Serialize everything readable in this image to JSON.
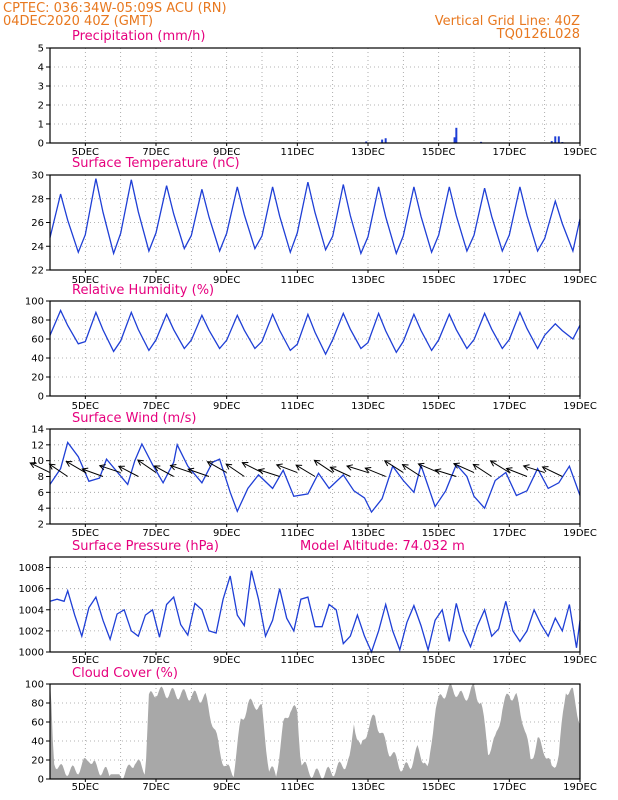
{
  "header": {
    "line1": "CPTEC:   036:34W-05:09S   ACU (RN)",
    "line2": "04DEC2020 40Z (GMT)",
    "right1": "Vertical Grid Line: 40Z",
    "right2": "TQ0126L028",
    "model_altitude": "Model Altitude: 74.032 m"
  },
  "colors": {
    "header": "#e8781f",
    "title": "#e6007e",
    "series": "#1f3fd6",
    "cloud": "#a8a8a8",
    "arrow": "#000000"
  },
  "x_labels": [
    "5DEC",
    "7DEC",
    "9DEC",
    "11DEC",
    "13DEC",
    "15DEC",
    "17DEC",
    "19DEC"
  ],
  "chart_data": [
    {
      "id": "precipitation",
      "type": "bar",
      "title": "Precipitation (mm/h)",
      "ylim": [
        0,
        5
      ],
      "yticks": [
        0,
        1,
        2,
        3,
        4,
        5
      ],
      "x_day_range": [
        4.0,
        19.0
      ],
      "points": [
        [
          12.95,
          0.08
        ],
        [
          13.4,
          0.18
        ],
        [
          13.5,
          0.25
        ],
        [
          15.5,
          0.8
        ],
        [
          15.45,
          0.3
        ],
        [
          16.2,
          0.06
        ],
        [
          18.2,
          0.1
        ],
        [
          18.3,
          0.35
        ],
        [
          18.4,
          0.35
        ],
        [
          18.5,
          0.05
        ]
      ]
    },
    {
      "id": "temperature",
      "type": "line",
      "title": "Surface Temperature (nC)",
      "ylim": [
        22,
        30
      ],
      "yticks": [
        22,
        24,
        26,
        28,
        30
      ],
      "x_day_range": [
        4.0,
        19.0
      ],
      "peaks": [
        28.4,
        29.7,
        29.6,
        29.1,
        28.8,
        29.0,
        29.0,
        29.4,
        29.2,
        29.0,
        29.0,
        29.0,
        28.9,
        29.0,
        27.8
      ],
      "troughs": [
        23.5,
        23.4,
        23.6,
        23.8,
        23.6,
        23.8,
        23.5,
        23.7,
        23.4,
        23.4,
        23.5,
        23.6,
        23.6,
        23.6,
        23.6
      ]
    },
    {
      "id": "humidity",
      "type": "line",
      "title": "Relative Humidity (%)",
      "ylim": [
        0,
        100
      ],
      "yticks": [
        0,
        20,
        40,
        60,
        80,
        100
      ],
      "x_day_range": [
        4.0,
        19.0
      ],
      "peaks": [
        90,
        88,
        88,
        86,
        85,
        85,
        86,
        86,
        87,
        87,
        86,
        86,
        87,
        88,
        76
      ],
      "troughs": [
        55,
        47,
        48,
        50,
        50,
        50,
        48,
        44,
        50,
        46,
        48,
        50,
        50,
        50,
        60
      ]
    },
    {
      "id": "wind",
      "type": "line",
      "title": "Surface Wind (m/s)",
      "ylim": [
        2,
        14
      ],
      "yticks": [
        2,
        4,
        6,
        8,
        10,
        12,
        14
      ],
      "x_day_range": [
        4.0,
        19.0
      ],
      "speed": [
        [
          4.0,
          7.0
        ],
        [
          4.3,
          9.0
        ],
        [
          4.5,
          12.3
        ],
        [
          4.8,
          10.5
        ],
        [
          5.1,
          7.4
        ],
        [
          5.4,
          7.8
        ],
        [
          5.6,
          10.2
        ],
        [
          5.9,
          8.6
        ],
        [
          6.2,
          7.0
        ],
        [
          6.4,
          10.0
        ],
        [
          6.6,
          12.1
        ],
        [
          6.9,
          9.5
        ],
        [
          7.2,
          7.2
        ],
        [
          7.5,
          9.8
        ],
        [
          7.6,
          12.0
        ],
        [
          7.9,
          9.3
        ],
        [
          8.3,
          7.2
        ],
        [
          8.6,
          9.8
        ],
        [
          8.8,
          10.2
        ],
        [
          9.1,
          6.0
        ],
        [
          9.3,
          3.6
        ],
        [
          9.6,
          6.5
        ],
        [
          9.9,
          8.2
        ],
        [
          10.3,
          6.5
        ],
        [
          10.6,
          8.8
        ],
        [
          10.9,
          5.5
        ],
        [
          11.3,
          5.8
        ],
        [
          11.6,
          8.4
        ],
        [
          11.9,
          6.5
        ],
        [
          12.3,
          8.2
        ],
        [
          12.6,
          6.2
        ],
        [
          12.9,
          5.3
        ],
        [
          13.1,
          3.5
        ],
        [
          13.4,
          5.2
        ],
        [
          13.7,
          9.3
        ],
        [
          14.0,
          7.5
        ],
        [
          14.3,
          6.0
        ],
        [
          14.5,
          9.4
        ],
        [
          14.9,
          4.2
        ],
        [
          15.2,
          6.2
        ],
        [
          15.5,
          9.5
        ],
        [
          15.8,
          8.0
        ],
        [
          16.0,
          5.5
        ],
        [
          16.3,
          4.0
        ],
        [
          16.6,
          7.5
        ],
        [
          16.9,
          8.5
        ],
        [
          17.2,
          5.6
        ],
        [
          17.5,
          6.2
        ],
        [
          17.8,
          9.0
        ],
        [
          18.1,
          6.5
        ],
        [
          18.4,
          7.2
        ],
        [
          18.7,
          9.3
        ],
        [
          19.0,
          5.6
        ]
      ],
      "arrow_days": [
        4.0,
        4.5,
        5.0,
        5.5,
        6.0,
        6.5,
        7.0,
        7.5,
        8.0,
        8.5,
        9.0,
        9.5,
        10.0,
        10.5,
        11.0,
        11.5,
        12.0,
        12.5,
        13.0,
        13.5,
        14.0,
        14.5,
        15.0,
        15.5,
        16.0,
        16.5,
        17.0,
        17.5,
        18.0,
        18.5
      ]
    },
    {
      "id": "pressure",
      "type": "line",
      "title": "Surface Pressure (hPa)",
      "ylim": [
        1000,
        1009
      ],
      "yticks": [
        1000,
        1002,
        1004,
        1006,
        1008
      ],
      "x_day_range": [
        4.0,
        19.0
      ],
      "points": [
        [
          4.0,
          1004.8
        ],
        [
          4.2,
          1005.0
        ],
        [
          4.4,
          1004.8
        ],
        [
          4.5,
          1005.8
        ],
        [
          4.7,
          1003.5
        ],
        [
          4.9,
          1001.5
        ],
        [
          5.1,
          1004.2
        ],
        [
          5.3,
          1005.2
        ],
        [
          5.5,
          1003.0
        ],
        [
          5.7,
          1001.2
        ],
        [
          5.9,
          1003.6
        ],
        [
          6.1,
          1004.0
        ],
        [
          6.3,
          1002.0
        ],
        [
          6.5,
          1001.5
        ],
        [
          6.7,
          1003.5
        ],
        [
          6.9,
          1004.0
        ],
        [
          7.1,
          1001.4
        ],
        [
          7.3,
          1004.5
        ],
        [
          7.5,
          1005.2
        ],
        [
          7.7,
          1002.6
        ],
        [
          7.9,
          1001.6
        ],
        [
          8.1,
          1004.6
        ],
        [
          8.3,
          1004.0
        ],
        [
          8.5,
          1002.0
        ],
        [
          8.7,
          1001.8
        ],
        [
          8.9,
          1005.0
        ],
        [
          9.1,
          1007.2
        ],
        [
          9.3,
          1003.5
        ],
        [
          9.5,
          1002.5
        ],
        [
          9.7,
          1007.7
        ],
        [
          9.9,
          1005.0
        ],
        [
          10.1,
          1001.5
        ],
        [
          10.3,
          1003.0
        ],
        [
          10.5,
          1006.0
        ],
        [
          10.7,
          1003.2
        ],
        [
          10.9,
          1002.0
        ],
        [
          11.1,
          1005.0
        ],
        [
          11.3,
          1005.2
        ],
        [
          11.5,
          1002.4
        ],
        [
          11.7,
          1002.4
        ],
        [
          11.9,
          1004.5
        ],
        [
          12.1,
          1004.0
        ],
        [
          12.3,
          1000.8
        ],
        [
          12.5,
          1001.5
        ],
        [
          12.7,
          1003.5
        ],
        [
          12.9,
          1001.5
        ],
        [
          13.1,
          1000.0
        ],
        [
          13.3,
          1002.0
        ],
        [
          13.5,
          1004.5
        ],
        [
          13.7,
          1002.0
        ],
        [
          13.9,
          1000.2
        ],
        [
          14.1,
          1002.8
        ],
        [
          14.3,
          1004.4
        ],
        [
          14.5,
          1002.5
        ],
        [
          14.7,
          1000.2
        ],
        [
          14.9,
          1003.0
        ],
        [
          15.1,
          1004.0
        ],
        [
          15.3,
          1001.0
        ],
        [
          15.5,
          1004.6
        ],
        [
          15.7,
          1002.0
        ],
        [
          15.9,
          1000.5
        ],
        [
          16.1,
          1002.5
        ],
        [
          16.3,
          1004.0
        ],
        [
          16.5,
          1001.5
        ],
        [
          16.7,
          1002.2
        ],
        [
          16.9,
          1004.8
        ],
        [
          17.1,
          1002.0
        ],
        [
          17.3,
          1001.0
        ],
        [
          17.5,
          1002.0
        ],
        [
          17.7,
          1004.0
        ],
        [
          17.9,
          1002.6
        ],
        [
          18.1,
          1001.5
        ],
        [
          18.3,
          1003.2
        ],
        [
          18.5,
          1002.0
        ],
        [
          18.7,
          1004.5
        ],
        [
          18.9,
          1000.4
        ],
        [
          19.0,
          1003.0
        ]
      ]
    },
    {
      "id": "cloud",
      "type": "area",
      "title": "Cloud Cover (%)",
      "ylim": [
        0,
        100
      ],
      "yticks": [
        0,
        20,
        40,
        60,
        80,
        100
      ],
      "x_day_range": [
        4.0,
        19.0
      ],
      "points": [
        [
          4.0,
          95
        ],
        [
          4.05,
          70
        ],
        [
          4.1,
          20
        ],
        [
          4.3,
          10
        ],
        [
          4.6,
          8
        ],
        [
          4.9,
          12
        ],
        [
          5.1,
          25
        ],
        [
          5.2,
          15
        ],
        [
          5.4,
          10
        ],
        [
          5.7,
          5
        ],
        [
          6.0,
          5
        ],
        [
          6.2,
          8
        ],
        [
          6.4,
          20
        ],
        [
          6.5,
          15
        ],
        [
          6.7,
          10
        ],
        [
          6.8,
          85
        ],
        [
          7.0,
          92
        ],
        [
          7.5,
          90
        ],
        [
          8.0,
          88
        ],
        [
          8.4,
          85
        ],
        [
          8.6,
          60
        ],
        [
          8.8,
          30
        ],
        [
          9.0,
          10
        ],
        [
          9.2,
          8
        ],
        [
          9.4,
          60
        ],
        [
          9.6,
          78
        ],
        [
          9.8,
          80
        ],
        [
          10.0,
          72
        ],
        [
          10.2,
          10
        ],
        [
          10.4,
          5
        ],
        [
          10.6,
          55
        ],
        [
          10.8,
          75
        ],
        [
          11.0,
          70
        ],
        [
          11.1,
          20
        ],
        [
          11.3,
          8
        ],
        [
          11.6,
          5
        ],
        [
          12.0,
          8
        ],
        [
          12.3,
          15
        ],
        [
          12.5,
          20
        ],
        [
          12.6,
          60
        ],
        [
          12.8,
          30
        ],
        [
          13.0,
          55
        ],
        [
          13.2,
          65
        ],
        [
          13.4,
          45
        ],
        [
          13.6,
          30
        ],
        [
          13.8,
          20
        ],
        [
          14.0,
          10
        ],
        [
          14.2,
          15
        ],
        [
          14.4,
          30
        ],
        [
          14.6,
          20
        ],
        [
          14.7,
          5
        ],
        [
          14.9,
          75
        ],
        [
          15.1,
          88
        ],
        [
          15.3,
          95
        ],
        [
          15.5,
          92
        ],
        [
          15.7,
          85
        ],
        [
          16.0,
          95
        ],
        [
          16.2,
          80
        ],
        [
          16.4,
          30
        ],
        [
          16.6,
          40
        ],
        [
          16.8,
          75
        ],
        [
          17.0,
          90
        ],
        [
          17.2,
          85
        ],
        [
          17.4,
          60
        ],
        [
          17.6,
          20
        ],
        [
          17.8,
          40
        ],
        [
          18.0,
          30
        ],
        [
          18.2,
          10
        ],
        [
          18.4,
          25
        ],
        [
          18.6,
          95
        ],
        [
          18.8,
          90
        ],
        [
          19.0,
          60
        ]
      ]
    }
  ]
}
